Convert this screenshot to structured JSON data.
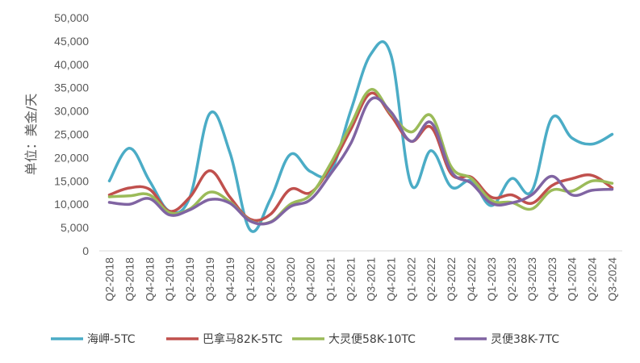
{
  "chart_data": {
    "type": "line",
    "ylabel": "单位：美金/天",
    "ylim": [
      0,
      50000
    ],
    "yticks": [
      "0",
      "5,000",
      "10,000",
      "15,000",
      "20,000",
      "25,000",
      "30,000",
      "35,000",
      "40,000",
      "45,000",
      "50,000"
    ],
    "ytick_values": [
      0,
      5000,
      10000,
      15000,
      20000,
      25000,
      30000,
      35000,
      40000,
      45000,
      50000
    ],
    "grid": false,
    "legend": "bottom",
    "categories": [
      "Q2-2018",
      "Q3-2018",
      "Q4-2018",
      "Q1-2019",
      "Q2-2019",
      "Q3-2019",
      "Q4-2019",
      "Q1-2020",
      "Q2-2020",
      "Q3-2020",
      "Q4-2020",
      "Q1-2021",
      "Q2-2021",
      "Q3-2021",
      "Q4-2021",
      "Q1-2022",
      "Q2-2022",
      "Q3-2022",
      "Q4-2022",
      "Q1-2023",
      "Q2-2023",
      "Q3-2023",
      "Q4-2023",
      "Q1-2024",
      "Q2-2024",
      "Q3-2024"
    ],
    "series": [
      {
        "name": "海岬-5TC",
        "color": "#4BACC6",
        "values": [
          15000,
          22000,
          15000,
          8500,
          11500,
          29500,
          21000,
          4500,
          11000,
          20700,
          17000,
          17000,
          30000,
          42200,
          42000,
          14300,
          21500,
          13700,
          15000,
          9700,
          15500,
          12800,
          28500,
          24200,
          22900,
          25000
        ]
      },
      {
        "name": "巴拿马82K-5TC",
        "color": "#C0504D",
        "values": [
          12000,
          13500,
          13200,
          8500,
          11500,
          17200,
          11500,
          6800,
          7800,
          13200,
          12500,
          18000,
          26000,
          33800,
          29000,
          23500,
          26500,
          16500,
          15800,
          11500,
          12000,
          10200,
          14000,
          15500,
          16200,
          13500
        ]
      },
      {
        "name": "大灵便58K-10TC",
        "color": "#9BBB59",
        "values": [
          11600,
          11800,
          12000,
          8200,
          9000,
          12600,
          10500,
          6500,
          6200,
          10000,
          12000,
          18700,
          27000,
          34600,
          29500,
          25500,
          29000,
          18000,
          15500,
          10800,
          10400,
          9000,
          13000,
          12800,
          15000,
          14500
        ]
      },
      {
        "name": "灵便38K-7TC",
        "color": "#8064A2",
        "values": [
          10400,
          10000,
          11200,
          7700,
          8800,
          11000,
          10200,
          6400,
          6100,
          9500,
          11000,
          16500,
          23000,
          32500,
          29800,
          23500,
          27500,
          17000,
          14500,
          10200,
          10300,
          12000,
          16000,
          12000,
          13000,
          13200
        ]
      }
    ]
  }
}
